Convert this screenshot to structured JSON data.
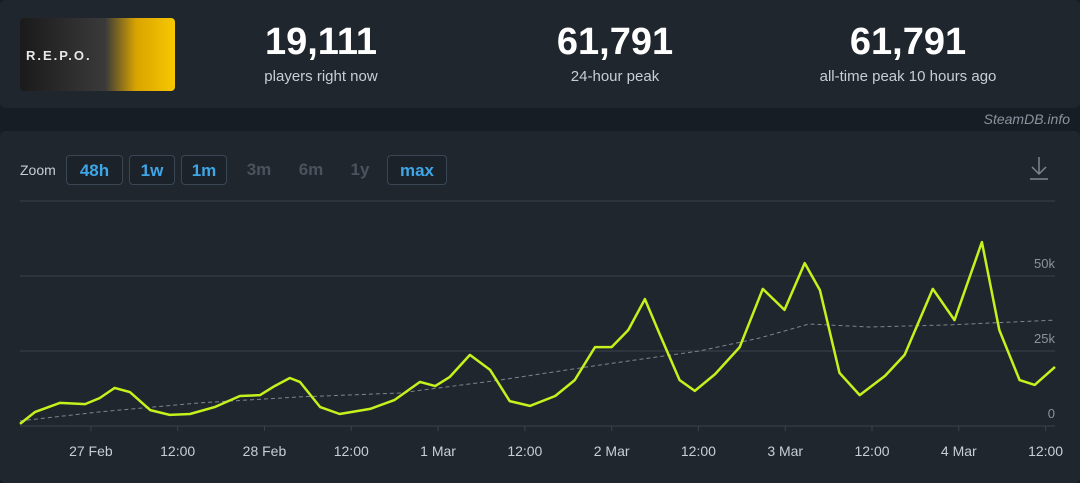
{
  "header": {
    "logo_text": "R.E.P.O.",
    "stats": [
      {
        "value": "19,111",
        "label": "players right now"
      },
      {
        "value": "61,791",
        "label": "24-hour peak"
      },
      {
        "value": "61,791",
        "label": "all-time peak 10 hours ago"
      }
    ],
    "credit": "SteamDB.info"
  },
  "zoom": {
    "label": "Zoom",
    "buttons": [
      {
        "text": "48h",
        "enabled": true
      },
      {
        "text": "1w",
        "enabled": true
      },
      {
        "text": "1m",
        "enabled": true
      },
      {
        "text": "3m",
        "enabled": false
      },
      {
        "text": "6m",
        "enabled": false
      },
      {
        "text": "1y",
        "enabled": false
      },
      {
        "text": "max",
        "enabled": true
      }
    ]
  },
  "chart_data": {
    "type": "line",
    "grid": true,
    "xlim": [
      -9.8,
      133.3
    ],
    "xticks": [
      {
        "value": 0,
        "label": "27 Feb"
      },
      {
        "value": 12,
        "label": "12:00"
      },
      {
        "value": 24,
        "label": "28 Feb"
      },
      {
        "value": 36,
        "label": "12:00"
      },
      {
        "value": 48,
        "label": "1 Mar"
      },
      {
        "value": 60,
        "label": "12:00"
      },
      {
        "value": 72,
        "label": "2 Mar"
      },
      {
        "value": 84,
        "label": "12:00"
      },
      {
        "value": 96,
        "label": "3 Mar"
      },
      {
        "value": 108,
        "label": "12:00"
      },
      {
        "value": 120,
        "label": "4 Mar"
      },
      {
        "value": 132,
        "label": "12:00"
      }
    ],
    "ylim": [
      0,
      75000
    ],
    "yticks": [
      0,
      {
        "value": 25000,
        "label": "25k"
      },
      {
        "value": 50000,
        "label": "50k"
      }
    ],
    "series": [
      {
        "color": "#c4f21c",
        "x": [
          -9.8,
          -7.7,
          -4.3,
          -0.8,
          1.2,
          3.3,
          5.4,
          8.2,
          10.9,
          13.7,
          17.1,
          20.6,
          23.4,
          25.4,
          27.5,
          28.9,
          31.7,
          34.4,
          38.6,
          42,
          45.5,
          47.6,
          49.6,
          52.4,
          55.2,
          57.9,
          60.7,
          64.2,
          66.9,
          69.7,
          72,
          74.3,
          76.6,
          78.7,
          81.4,
          83.5,
          86.3,
          89.7,
          92.9,
          95.9,
          98.7,
          100.8,
          103.5,
          106.3,
          109.8,
          112.5,
          116.4,
          119.4,
          123.2,
          125.6,
          128.4,
          130.5,
          133.3
        ],
        "values": [
          700,
          4700,
          7700,
          7300,
          9300,
          12700,
          11300,
          5300,
          3700,
          4000,
          6300,
          10000,
          10300,
          13300,
          16000,
          14700,
          6300,
          4000,
          5700,
          8700,
          14700,
          13300,
          16300,
          23700,
          18700,
          8300,
          6700,
          10000,
          15300,
          26300,
          26300,
          32000,
          42300,
          30300,
          15300,
          11700,
          17300,
          26300,
          45700,
          38700,
          54300,
          45300,
          17700,
          10300,
          16700,
          23700,
          45700,
          35300,
          61300,
          32000,
          15300,
          13700,
          19700
        ]
      },
      {
        "color": "#7d858e",
        "dashed": true,
        "x": [
          -9.8,
          1.2,
          15,
          28.9,
          42.7,
          56.5,
          70.3,
          84.1,
          92.4,
          99.3,
          107.6,
          118.6,
          133.3
        ],
        "values": [
          1700,
          4700,
          7700,
          9700,
          11000,
          15300,
          20300,
          25000,
          29300,
          34000,
          33000,
          33700,
          35300
        ]
      }
    ]
  }
}
